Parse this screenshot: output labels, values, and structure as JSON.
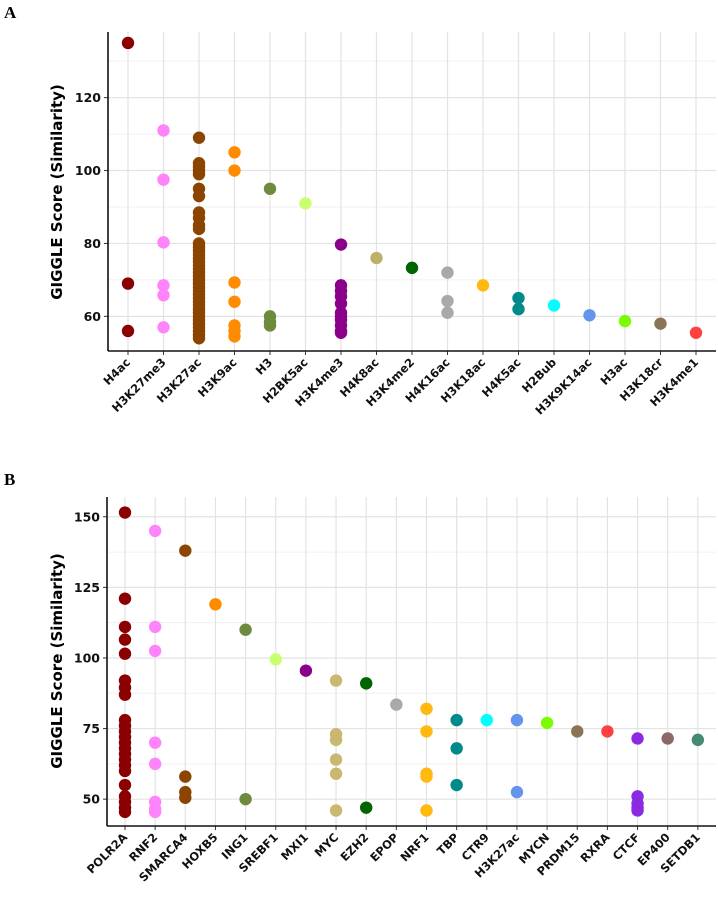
{
  "chart_data": [
    {
      "panel": "A",
      "type": "scatter",
      "ylabel": "GIGGLE Score (Similarity)",
      "xlabel": "",
      "ylim": [
        50.5,
        138
      ],
      "yticks": [
        60,
        80,
        100,
        120
      ],
      "grid": true,
      "categories": [
        "H4ac",
        "H3K27me3",
        "H3K27ac",
        "H3K9ac",
        "H3",
        "H2BK5ac",
        "H3K4me3",
        "H4K8ac",
        "H3K4me2",
        "H4K16ac",
        "H3K18ac",
        "H4K5ac",
        "H2Bub",
        "H3K9K14ac",
        "H3ac",
        "H3K18cr",
        "H3K4me1"
      ],
      "colors": [
        "#8B0000",
        "#FF83FA",
        "#8B4500",
        "#FF8C00",
        "#6E8B3D",
        "#CAFF70",
        "#8B008B",
        "#BDB06B",
        "#006400",
        "#A9A9A9",
        "#FFB90F",
        "#008B8B",
        "#00FFFF",
        "#6495ED",
        "#7CFC00",
        "#8B7355",
        "#FF4040"
      ],
      "series": [
        [
          135,
          69,
          56
        ],
        [
          111,
          97.5,
          80.3,
          68.5,
          65.8,
          57
        ],
        [
          109,
          102,
          101,
          100,
          99,
          95,
          93,
          88.5,
          87,
          85,
          84,
          80,
          79,
          78,
          77,
          76,
          75,
          74,
          73,
          72,
          71,
          70,
          69,
          68,
          67,
          66,
          65,
          64,
          63,
          62,
          61,
          60,
          59,
          58,
          57,
          56,
          55,
          54
        ],
        [
          105,
          100,
          69.3,
          64,
          57.5,
          56,
          54.5
        ],
        [
          95,
          60,
          58.5,
          57.5
        ],
        [
          91
        ],
        [
          79.7,
          68.5,
          67,
          65.5,
          63.5,
          61,
          60,
          59,
          57.5,
          56,
          55.5
        ],
        [
          76
        ],
        [
          73.3
        ],
        [
          72,
          64.2,
          61
        ],
        [
          68.5
        ],
        [
          65,
          62
        ],
        [
          63
        ],
        [
          60.3
        ],
        [
          58.7
        ],
        [
          58
        ],
        [
          55.5
        ]
      ]
    },
    {
      "panel": "B",
      "type": "scatter",
      "ylabel": "GIGGLE Score (Similarity)",
      "xlabel": "",
      "ylim": [
        40.5,
        157
      ],
      "yticks": [
        50,
        75,
        100,
        125,
        150
      ],
      "grid": true,
      "categories": [
        "POLR2A",
        "RNF2",
        "SMARCA4",
        "HOXB5",
        "ING1",
        "SREBF1",
        "MXI1",
        "MYC",
        "EZH2",
        "EPOP",
        "NRF1",
        "TBP",
        "CTR9",
        "H3K27ac",
        "MYCN",
        "PRDM15",
        "RXRA",
        "CTCF",
        "EP400",
        "SETDB1"
      ],
      "colors": [
        "#8B0000",
        "#FF83FA",
        "#8B4500",
        "#FF8C00",
        "#6E8B3D",
        "#CAFF70",
        "#8B008B",
        "#C8B870",
        "#006400",
        "#A9A9A9",
        "#FFB90F",
        "#008B8B",
        "#00FFFF",
        "#6495ED",
        "#7CFC00",
        "#8B7355",
        "#FF4040",
        "#8A2BE2",
        "#8B6969",
        "#458B74"
      ],
      "series": [
        [
          151.5,
          121,
          111,
          106.5,
          101.5,
          92,
          89.5,
          87,
          78,
          76,
          74,
          72,
          70,
          68,
          66,
          64,
          62,
          60,
          55,
          51,
          49,
          47,
          45.5
        ],
        [
          145,
          111,
          102.5,
          70,
          62.5,
          49,
          46.5,
          45.5
        ],
        [
          138,
          58,
          52.5,
          50.5
        ],
        [
          119
        ],
        [
          110,
          50
        ],
        [
          99.5
        ],
        [
          95.5
        ],
        [
          92,
          73,
          71,
          64,
          59,
          46
        ],
        [
          91,
          47
        ],
        [
          83.5
        ],
        [
          82,
          74,
          59,
          58,
          46
        ],
        [
          78,
          68,
          55
        ],
        [
          78
        ],
        [
          78,
          52.5
        ],
        [
          77
        ],
        [
          74
        ],
        [
          74
        ],
        [
          71.5,
          51,
          48.5,
          47,
          46
        ],
        [
          71.5
        ],
        [
          71
        ]
      ]
    }
  ]
}
